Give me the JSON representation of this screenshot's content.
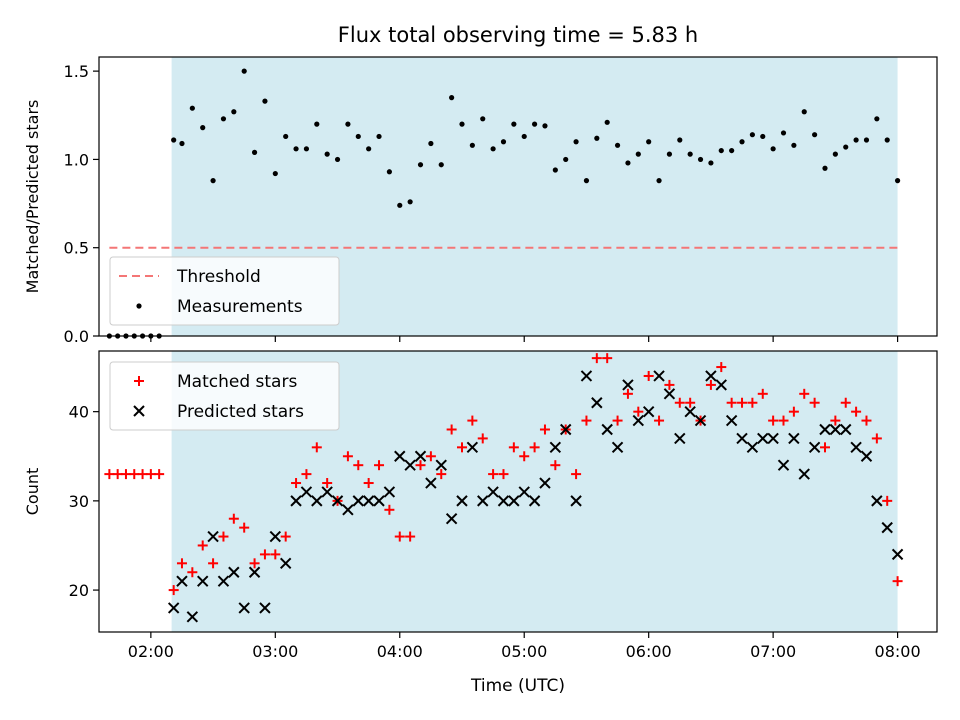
{
  "chart_data": {
    "title": "Flux total observing time = 5.83 h",
    "xlabel": "Time (UTC)",
    "x_ticks": [
      "02:00",
      "03:00",
      "04:00",
      "05:00",
      "06:00",
      "07:00",
      "08:00"
    ],
    "xlim": [
      "01:35",
      "08:19"
    ],
    "shaded_span": [
      "02:10",
      "08:00"
    ],
    "colors": {
      "span": "#d4ebf2",
      "threshold": "#f47676",
      "matched": "#ff0000",
      "predicted": "#000000",
      "measurements": "#000000"
    },
    "panels": [
      {
        "type": "scatter",
        "ylabel": "Matched/Predicted stars",
        "ylim": [
          0,
          1.58
        ],
        "y_ticks": [
          "0.0",
          "0.5",
          "1.0",
          "1.5"
        ],
        "legend_position": "lower-left",
        "threshold": {
          "name": "Threshold",
          "value": 0.5,
          "x_range": [
            "01:40",
            "08:00"
          ]
        },
        "series": [
          {
            "name": "Measurements",
            "points": [
              [
                "01:40",
                0.0
              ],
              [
                "01:44",
                0.0
              ],
              [
                "01:48",
                0.0
              ],
              [
                "01:52",
                0.0
              ],
              [
                "01:56",
                0.0
              ],
              [
                "02:00",
                0.0
              ],
              [
                "02:04",
                0.0
              ],
              [
                "02:11",
                1.11
              ],
              [
                "02:15",
                1.09
              ],
              [
                "02:20",
                1.29
              ],
              [
                "02:25",
                1.18
              ],
              [
                "02:30",
                0.88
              ],
              [
                "02:35",
                1.23
              ],
              [
                "02:40",
                1.27
              ],
              [
                "02:45",
                1.5
              ],
              [
                "02:50",
                1.04
              ],
              [
                "02:55",
                1.33
              ],
              [
                "03:00",
                0.92
              ],
              [
                "03:05",
                1.13
              ],
              [
                "03:10",
                1.06
              ],
              [
                "03:15",
                1.06
              ],
              [
                "03:20",
                1.2
              ],
              [
                "03:25",
                1.03
              ],
              [
                "03:30",
                1.0
              ],
              [
                "03:35",
                1.2
              ],
              [
                "03:40",
                1.13
              ],
              [
                "03:45",
                1.06
              ],
              [
                "03:50",
                1.13
              ],
              [
                "03:55",
                0.93
              ],
              [
                "04:00",
                0.74
              ],
              [
                "04:05",
                0.76
              ],
              [
                "04:10",
                0.97
              ],
              [
                "04:15",
                1.09
              ],
              [
                "04:20",
                0.97
              ],
              [
                "04:25",
                1.35
              ],
              [
                "04:30",
                1.2
              ],
              [
                "04:35",
                1.08
              ],
              [
                "04:40",
                1.23
              ],
              [
                "04:45",
                1.06
              ],
              [
                "04:50",
                1.1
              ],
              [
                "04:55",
                1.2
              ],
              [
                "05:00",
                1.13
              ],
              [
                "05:05",
                1.2
              ],
              [
                "05:10",
                1.19
              ],
              [
                "05:15",
                0.94
              ],
              [
                "05:20",
                1.0
              ],
              [
                "05:25",
                1.1
              ],
              [
                "05:30",
                0.88
              ],
              [
                "05:35",
                1.12
              ],
              [
                "05:40",
                1.21
              ],
              [
                "05:45",
                1.08
              ],
              [
                "05:50",
                0.98
              ],
              [
                "05:55",
                1.03
              ],
              [
                "06:00",
                1.1
              ],
              [
                "06:05",
                0.88
              ],
              [
                "06:10",
                1.03
              ],
              [
                "06:15",
                1.11
              ],
              [
                "06:20",
                1.03
              ],
              [
                "06:25",
                1.0
              ],
              [
                "06:30",
                0.98
              ],
              [
                "06:35",
                1.05
              ],
              [
                "06:40",
                1.05
              ],
              [
                "06:45",
                1.1
              ],
              [
                "06:50",
                1.14
              ],
              [
                "06:55",
                1.13
              ],
              [
                "07:00",
                1.06
              ],
              [
                "07:05",
                1.15
              ],
              [
                "07:10",
                1.08
              ],
              [
                "07:15",
                1.27
              ],
              [
                "07:20",
                1.14
              ],
              [
                "07:25",
                0.95
              ],
              [
                "07:30",
                1.03
              ],
              [
                "07:35",
                1.07
              ],
              [
                "07:40",
                1.11
              ],
              [
                "07:45",
                1.11
              ],
              [
                "07:50",
                1.23
              ],
              [
                "07:55",
                1.11
              ],
              [
                "08:00",
                0.88
              ]
            ]
          }
        ]
      },
      {
        "type": "scatter",
        "ylabel": "Count",
        "ylim": [
          15.3,
          46.8
        ],
        "y_ticks": [
          "20",
          "30",
          "40"
        ],
        "legend_position": "upper-left",
        "series": [
          {
            "name": "Matched stars",
            "marker": "plus",
            "points": [
              [
                "01:40",
                33
              ],
              [
                "01:44",
                33
              ],
              [
                "01:48",
                33
              ],
              [
                "01:52",
                33
              ],
              [
                "01:56",
                33
              ],
              [
                "02:00",
                33
              ],
              [
                "02:04",
                33
              ],
              [
                "02:11",
                20
              ],
              [
                "02:15",
                23
              ],
              [
                "02:20",
                22
              ],
              [
                "02:25",
                25
              ],
              [
                "02:30",
                23
              ],
              [
                "02:35",
                26
              ],
              [
                "02:40",
                28
              ],
              [
                "02:45",
                27
              ],
              [
                "02:50",
                23
              ],
              [
                "02:55",
                24
              ],
              [
                "03:00",
                24
              ],
              [
                "03:05",
                26
              ],
              [
                "03:10",
                32
              ],
              [
                "03:15",
                33
              ],
              [
                "03:20",
                36
              ],
              [
                "03:25",
                32
              ],
              [
                "03:30",
                30
              ],
              [
                "03:35",
                35
              ],
              [
                "03:40",
                34
              ],
              [
                "03:45",
                32
              ],
              [
                "03:50",
                34
              ],
              [
                "03:55",
                29
              ],
              [
                "04:00",
                26
              ],
              [
                "04:05",
                26
              ],
              [
                "04:10",
                34
              ],
              [
                "04:15",
                35
              ],
              [
                "04:20",
                33
              ],
              [
                "04:25",
                38
              ],
              [
                "04:30",
                36
              ],
              [
                "04:35",
                39
              ],
              [
                "04:40",
                37
              ],
              [
                "04:45",
                33
              ],
              [
                "04:50",
                33
              ],
              [
                "04:55",
                36
              ],
              [
                "05:00",
                35
              ],
              [
                "05:05",
                36
              ],
              [
                "05:10",
                38
              ],
              [
                "05:15",
                34
              ],
              [
                "05:20",
                38
              ],
              [
                "05:25",
                33
              ],
              [
                "05:30",
                39
              ],
              [
                "05:35",
                46
              ],
              [
                "05:40",
                46
              ],
              [
                "05:45",
                39
              ],
              [
                "05:50",
                42
              ],
              [
                "05:55",
                40
              ],
              [
                "06:00",
                44
              ],
              [
                "06:05",
                39
              ],
              [
                "06:10",
                43
              ],
              [
                "06:15",
                41
              ],
              [
                "06:20",
                41
              ],
              [
                "06:25",
                39
              ],
              [
                "06:30",
                43
              ],
              [
                "06:35",
                45
              ],
              [
                "06:40",
                41
              ],
              [
                "06:45",
                41
              ],
              [
                "06:50",
                41
              ],
              [
                "06:55",
                42
              ],
              [
                "07:00",
                39
              ],
              [
                "07:05",
                39
              ],
              [
                "07:10",
                40
              ],
              [
                "07:15",
                42
              ],
              [
                "07:20",
                41
              ],
              [
                "07:25",
                36
              ],
              [
                "07:30",
                39
              ],
              [
                "07:35",
                41
              ],
              [
                "07:40",
                40
              ],
              [
                "07:45",
                39
              ],
              [
                "07:50",
                37
              ],
              [
                "07:55",
                30
              ],
              [
                "08:00",
                21
              ]
            ]
          },
          {
            "name": "Predicted stars",
            "marker": "x",
            "points": [
              [
                "02:11",
                18
              ],
              [
                "02:15",
                21
              ],
              [
                "02:20",
                17
              ],
              [
                "02:25",
                21
              ],
              [
                "02:30",
                26
              ],
              [
                "02:35",
                21
              ],
              [
                "02:40",
                22
              ],
              [
                "02:45",
                18
              ],
              [
                "02:50",
                22
              ],
              [
                "02:55",
                18
              ],
              [
                "03:00",
                26
              ],
              [
                "03:05",
                23
              ],
              [
                "03:10",
                30
              ],
              [
                "03:15",
                31
              ],
              [
                "03:20",
                30
              ],
              [
                "03:25",
                31
              ],
              [
                "03:30",
                30
              ],
              [
                "03:35",
                29
              ],
              [
                "03:40",
                30
              ],
              [
                "03:45",
                30
              ],
              [
                "03:50",
                30
              ],
              [
                "03:55",
                31
              ],
              [
                "04:00",
                35
              ],
              [
                "04:05",
                34
              ],
              [
                "04:10",
                35
              ],
              [
                "04:15",
                32
              ],
              [
                "04:20",
                34
              ],
              [
                "04:25",
                28
              ],
              [
                "04:30",
                30
              ],
              [
                "04:35",
                36
              ],
              [
                "04:40",
                30
              ],
              [
                "04:45",
                31
              ],
              [
                "04:50",
                30
              ],
              [
                "04:55",
                30
              ],
              [
                "05:00",
                31
              ],
              [
                "05:05",
                30
              ],
              [
                "05:10",
                32
              ],
              [
                "05:15",
                36
              ],
              [
                "05:20",
                38
              ],
              [
                "05:25",
                30
              ],
              [
                "05:30",
                44
              ],
              [
                "05:35",
                41
              ],
              [
                "05:40",
                38
              ],
              [
                "05:45",
                36
              ],
              [
                "05:50",
                43
              ],
              [
                "05:55",
                39
              ],
              [
                "06:00",
                40
              ],
              [
                "06:05",
                44
              ],
              [
                "06:10",
                42
              ],
              [
                "06:15",
                37
              ],
              [
                "06:20",
                40
              ],
              [
                "06:25",
                39
              ],
              [
                "06:30",
                44
              ],
              [
                "06:35",
                43
              ],
              [
                "06:40",
                39
              ],
              [
                "06:45",
                37
              ],
              [
                "06:50",
                36
              ],
              [
                "06:55",
                37
              ],
              [
                "07:00",
                37
              ],
              [
                "07:05",
                34
              ],
              [
                "07:10",
                37
              ],
              [
                "07:15",
                33
              ],
              [
                "07:20",
                36
              ],
              [
                "07:25",
                38
              ],
              [
                "07:30",
                38
              ],
              [
                "07:35",
                38
              ],
              [
                "07:40",
                36
              ],
              [
                "07:45",
                35
              ],
              [
                "07:50",
                30
              ],
              [
                "07:55",
                27
              ],
              [
                "08:00",
                24
              ]
            ]
          }
        ]
      }
    ]
  }
}
